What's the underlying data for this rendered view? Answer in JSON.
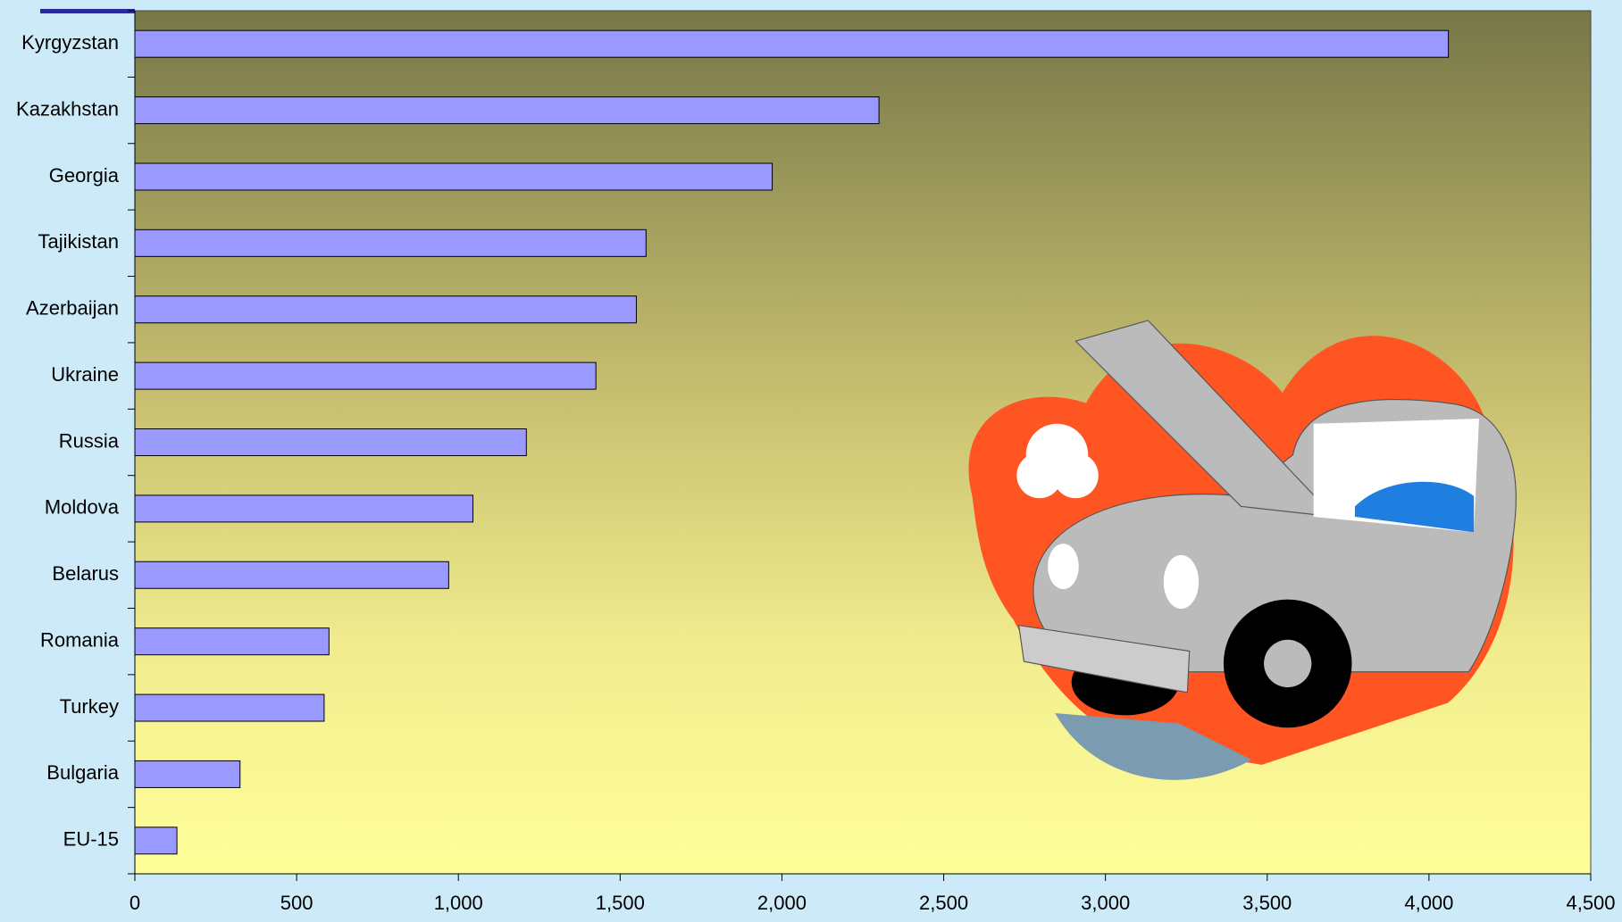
{
  "chart_data": {
    "type": "bar",
    "orientation": "horizontal",
    "categories": [
      "Kyrgyzstan",
      "Kazakhstan",
      "Georgia",
      "Tajikistan",
      "Azerbaijan",
      "Ukraine",
      "Russia",
      "Moldova",
      "Belarus",
      "Romania",
      "Turkey",
      "Bulgaria",
      "EU-15"
    ],
    "values": [
      4060,
      2300,
      1970,
      1580,
      1550,
      1425,
      1210,
      1045,
      970,
      600,
      585,
      325,
      130
    ],
    "color": "#9999ff",
    "xlim": [
      0,
      4500
    ],
    "xticks": [
      0,
      500,
      {
        "value": 1000,
        "label": "1,000"
      },
      {
        "value": 1500,
        "label": "1,500"
      },
      {
        "value": 2000,
        "label": "2,000"
      },
      {
        "value": 2500,
        "label": "2,500"
      },
      {
        "value": 3000,
        "label": "3,000"
      },
      {
        "value": 3500,
        "label": "3,500"
      },
      {
        "value": 4000,
        "label": "4,000"
      },
      {
        "value": 4500,
        "label": "4,500"
      }
    ]
  }
}
